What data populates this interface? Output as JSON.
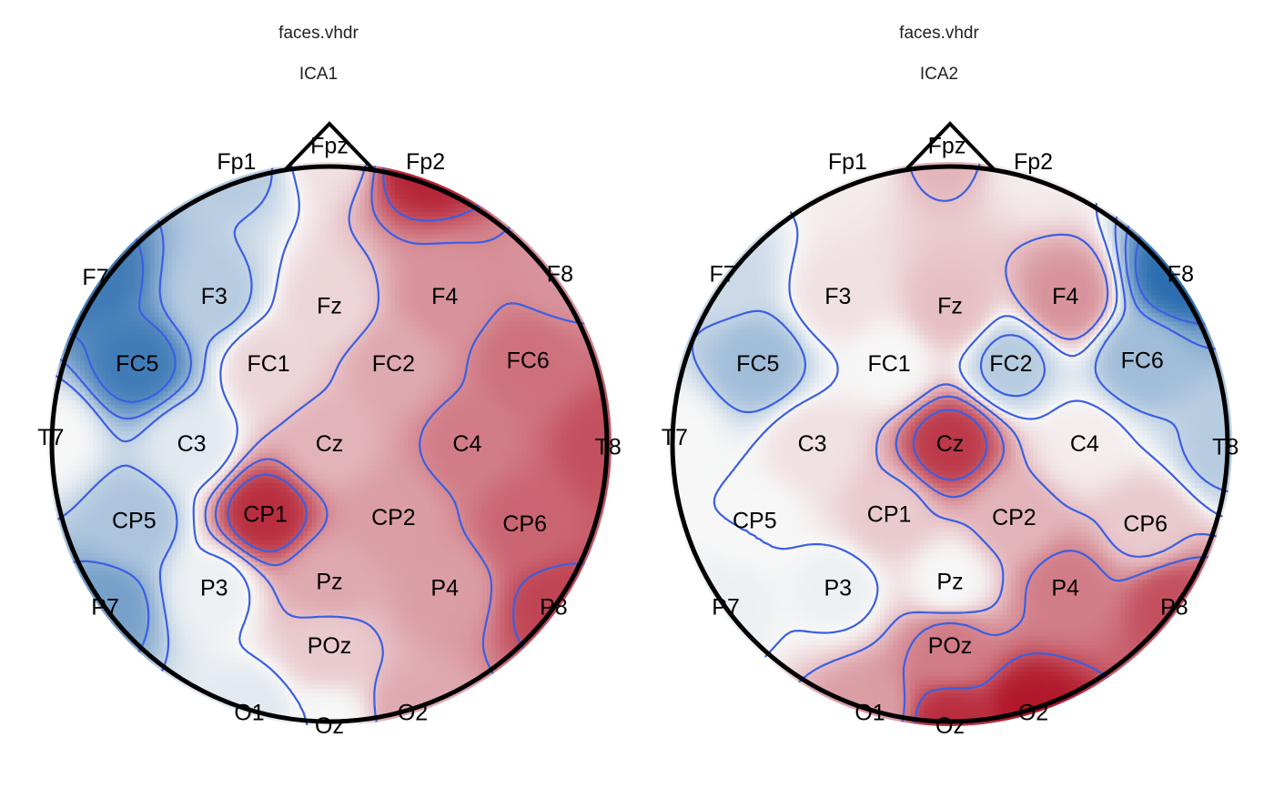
{
  "chart_data": [
    {
      "type": "heatmap",
      "file_title": "faces.vhdr",
      "component_title": "ICA1",
      "colors": {
        "positive": "#b2182b",
        "negative": "#2166ac",
        "neutral": "#f7f7f7",
        "contour": "#3b5fe3",
        "outline": "#000000"
      },
      "electrodes": [
        {
          "label": "Fp1",
          "x": -0.29,
          "y": 0.88,
          "v": -0.3
        },
        {
          "label": "Fpz",
          "x": 0.0,
          "y": 0.93,
          "v": 0.1
        },
        {
          "label": "Fp2",
          "x": 0.3,
          "y": 0.88,
          "v": 0.95
        },
        {
          "label": "F7",
          "x": -0.73,
          "y": 0.52,
          "v": -0.85
        },
        {
          "label": "F3",
          "x": -0.36,
          "y": 0.46,
          "v": -0.3
        },
        {
          "label": "Fz",
          "x": 0.0,
          "y": 0.43,
          "v": 0.15
        },
        {
          "label": "F4",
          "x": 0.36,
          "y": 0.46,
          "v": 0.45
        },
        {
          "label": "F8",
          "x": 0.72,
          "y": 0.53,
          "v": 0.45
        },
        {
          "label": "FC5",
          "x": -0.6,
          "y": 0.25,
          "v": -0.85
        },
        {
          "label": "FC1",
          "x": -0.19,
          "y": 0.25,
          "v": 0.15
        },
        {
          "label": "FC2",
          "x": 0.2,
          "y": 0.25,
          "v": 0.35
        },
        {
          "label": "FC6",
          "x": 0.62,
          "y": 0.26,
          "v": 0.6
        },
        {
          "label": "T7",
          "x": -0.87,
          "y": 0.02,
          "v": 0.0
        },
        {
          "label": "C3",
          "x": -0.43,
          "y": 0.0,
          "v": -0.1
        },
        {
          "label": "Cz",
          "x": 0.0,
          "y": 0.0,
          "v": 0.3
        },
        {
          "label": "C4",
          "x": 0.43,
          "y": 0.0,
          "v": 0.55
        },
        {
          "label": "T8",
          "x": 0.87,
          "y": -0.01,
          "v": 0.75
        },
        {
          "label": "CP5",
          "x": -0.61,
          "y": -0.24,
          "v": -0.35
        },
        {
          "label": "CP1",
          "x": -0.2,
          "y": -0.22,
          "v": 0.9
        },
        {
          "label": "CP2",
          "x": 0.2,
          "y": -0.23,
          "v": 0.4
        },
        {
          "label": "CP6",
          "x": 0.61,
          "y": -0.25,
          "v": 0.65
        },
        {
          "label": "P7",
          "x": -0.7,
          "y": -0.51,
          "v": -0.6
        },
        {
          "label": "P3",
          "x": -0.36,
          "y": -0.45,
          "v": -0.05
        },
        {
          "label": "Pz",
          "x": 0.0,
          "y": -0.43,
          "v": 0.35
        },
        {
          "label": "P4",
          "x": 0.36,
          "y": -0.45,
          "v": 0.4
        },
        {
          "label": "P8",
          "x": 0.7,
          "y": -0.51,
          "v": 0.8
        },
        {
          "label": "POz",
          "x": 0.0,
          "y": -0.63,
          "v": 0.2
        },
        {
          "label": "O1",
          "x": -0.25,
          "y": -0.84,
          "v": -0.1
        },
        {
          "label": "Oz",
          "x": 0.0,
          "y": -0.88,
          "v": 0.0
        },
        {
          "label": "O2",
          "x": 0.26,
          "y": -0.84,
          "v": 0.35
        }
      ]
    },
    {
      "type": "heatmap",
      "file_title": "faces.vhdr",
      "component_title": "ICA2",
      "colors": {
        "positive": "#b2182b",
        "negative": "#2166ac",
        "neutral": "#f7f7f7",
        "contour": "#3b5fe3",
        "outline": "#000000"
      },
      "electrodes": [
        {
          "label": "Fp1",
          "x": -0.32,
          "y": 0.88,
          "v": 0.05
        },
        {
          "label": "Fpz",
          "x": -0.01,
          "y": 0.93,
          "v": 0.3
        },
        {
          "label": "Fp2",
          "x": 0.26,
          "y": 0.88,
          "v": 0.05
        },
        {
          "label": "F7",
          "x": -0.71,
          "y": 0.53,
          "v": -0.2
        },
        {
          "label": "F3",
          "x": -0.35,
          "y": 0.46,
          "v": 0.1
        },
        {
          "label": "Fz",
          "x": 0.0,
          "y": 0.43,
          "v": 0.25
        },
        {
          "label": "F4",
          "x": 0.36,
          "y": 0.46,
          "v": 0.45
        },
        {
          "label": "F8",
          "x": 0.72,
          "y": 0.53,
          "v": -0.95
        },
        {
          "label": "FC5",
          "x": -0.6,
          "y": 0.25,
          "v": -0.4
        },
        {
          "label": "FC1",
          "x": -0.19,
          "y": 0.25,
          "v": 0.0
        },
        {
          "label": "FC2",
          "x": 0.19,
          "y": 0.25,
          "v": -0.3
        },
        {
          "label": "FC6",
          "x": 0.6,
          "y": 0.26,
          "v": -0.4
        },
        {
          "label": "T7",
          "x": -0.86,
          "y": 0.02,
          "v": 0.0
        },
        {
          "label": "C3",
          "x": -0.43,
          "y": 0.0,
          "v": 0.1
        },
        {
          "label": "Cz",
          "x": 0.0,
          "y": 0.0,
          "v": 0.85
        },
        {
          "label": "C4",
          "x": 0.42,
          "y": 0.0,
          "v": 0.05
        },
        {
          "label": "T8",
          "x": 0.86,
          "y": -0.01,
          "v": -0.3
        },
        {
          "label": "CP5",
          "x": -0.61,
          "y": -0.24,
          "v": 0.0
        },
        {
          "label": "CP1",
          "x": -0.19,
          "y": -0.22,
          "v": 0.2
        },
        {
          "label": "CP2",
          "x": 0.2,
          "y": -0.23,
          "v": 0.3
        },
        {
          "label": "CP6",
          "x": 0.61,
          "y": -0.25,
          "v": 0.2
        },
        {
          "label": "P7",
          "x": -0.7,
          "y": -0.51,
          "v": -0.05
        },
        {
          "label": "P3",
          "x": -0.35,
          "y": -0.45,
          "v": -0.05
        },
        {
          "label": "Pz",
          "x": 0.0,
          "y": -0.43,
          "v": 0.0
        },
        {
          "label": "P4",
          "x": 0.36,
          "y": -0.45,
          "v": 0.55
        },
        {
          "label": "P8",
          "x": 0.7,
          "y": -0.51,
          "v": 0.75
        },
        {
          "label": "POz",
          "x": 0.0,
          "y": -0.63,
          "v": 0.55
        },
        {
          "label": "O1",
          "x": -0.25,
          "y": -0.84,
          "v": 0.4
        },
        {
          "label": "Oz",
          "x": 0.0,
          "y": -0.88,
          "v": 0.9
        },
        {
          "label": "O2",
          "x": 0.26,
          "y": -0.84,
          "v": 1.0
        }
      ]
    }
  ]
}
